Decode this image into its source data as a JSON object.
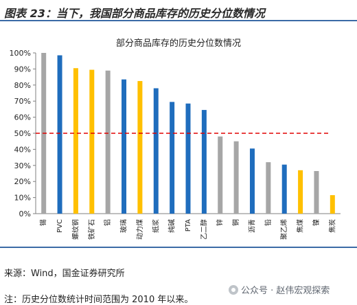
{
  "figure_title": "图表 23：当下，我国部分商品库存的历史分位数情况",
  "source_text": "来源：Wind，国金证券研究所",
  "note_text": "注：历史分位数统计时间范围为 2010 年以来。",
  "watermark": {
    "text": "公众号 · 赵伟宏观探索",
    "icon": "wechat-icon"
  },
  "colors": {
    "gray": "#a6a6a6",
    "blue": "#1f6dbd",
    "yellow": "#ffc000",
    "reference_line": "#e00000",
    "rule": "#3a6aa6"
  },
  "chart_data": {
    "type": "bar",
    "title": "部分商品库存的历史分位数情况",
    "xlabel": "",
    "ylabel": "",
    "ylim": [
      0,
      100
    ],
    "yticks": [
      "0%",
      "10%",
      "20%",
      "30%",
      "40%",
      "50%",
      "60%",
      "70%",
      "80%",
      "90%",
      "100%"
    ],
    "grid": false,
    "legend": "none",
    "reference_line": {
      "value": 50,
      "style": "dashed",
      "color": "#e00000"
    },
    "categories": [
      "锡",
      "PVC",
      "螺纹钢",
      "铁矿石",
      "铝",
      "玻璃",
      "动力煤",
      "纸浆",
      "纯碱",
      "PTA",
      "乙二醇",
      "锌",
      "铜",
      "沥青",
      "铅",
      "聚乙烯",
      "焦煤",
      "镍",
      "焦炭"
    ],
    "values": [
      100,
      98.5,
      90.5,
      89.5,
      89,
      83.5,
      82.5,
      78,
      69.5,
      68.5,
      64.5,
      48,
      45,
      40.5,
      32,
      30.5,
      27,
      26.5,
      11.5
    ],
    "bar_colors": [
      "gray",
      "blue",
      "yellow",
      "yellow",
      "gray",
      "blue",
      "yellow",
      "blue",
      "blue",
      "blue",
      "blue",
      "gray",
      "gray",
      "blue",
      "gray",
      "blue",
      "yellow",
      "gray",
      "yellow"
    ]
  }
}
